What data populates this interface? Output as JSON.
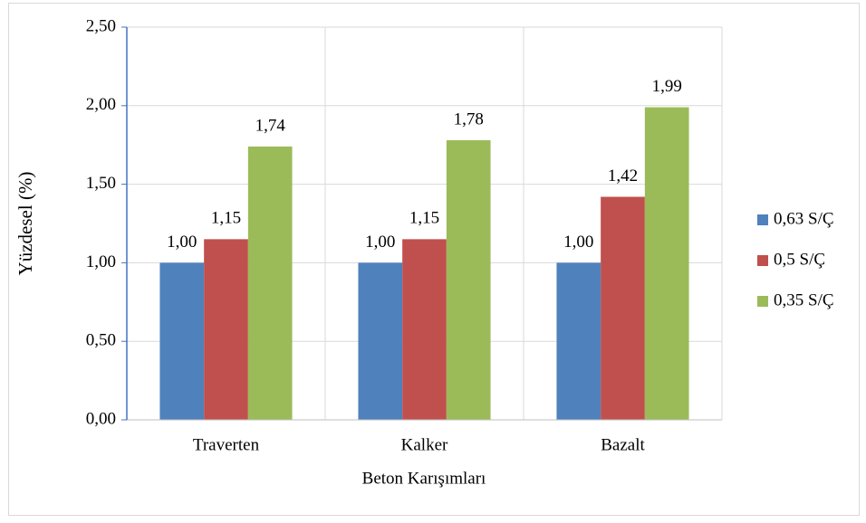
{
  "chart_data": {
    "type": "bar",
    "x_label": "Beton Karışımları",
    "y_label": "Yüzdesel (%)",
    "categories": [
      "Traverten",
      "Kalker",
      "Bazalt"
    ],
    "series": [
      {
        "name": "0,63 S/Ç",
        "color": "#4f81bd",
        "values": [
          1.0,
          1.0,
          1.0
        ],
        "value_labels": [
          "1,00",
          "1,00",
          "1,00"
        ]
      },
      {
        "name": "0,5 S/Ç",
        "color": "#c0504d",
        "values": [
          1.15,
          1.15,
          1.42
        ],
        "value_labels": [
          "1,15",
          "1,15",
          "1,42"
        ]
      },
      {
        "name": "0,35 S/Ç",
        "color": "#9bbb59",
        "values": [
          1.74,
          1.78,
          1.99
        ],
        "value_labels": [
          "1,74",
          "1,78",
          "1,99"
        ]
      }
    ],
    "ylim": [
      0,
      2.5
    ],
    "yticks": [
      {
        "value": 0,
        "label": "0,00"
      },
      {
        "value": 0.5,
        "label": "0,50"
      },
      {
        "value": 1,
        "label": "1,00"
      },
      {
        "value": 1.5,
        "label": "1,50"
      },
      {
        "value": 2,
        "label": "2,00"
      },
      {
        "value": 2.5,
        "label": "2,50"
      }
    ],
    "grid": true,
    "legend": "right"
  }
}
